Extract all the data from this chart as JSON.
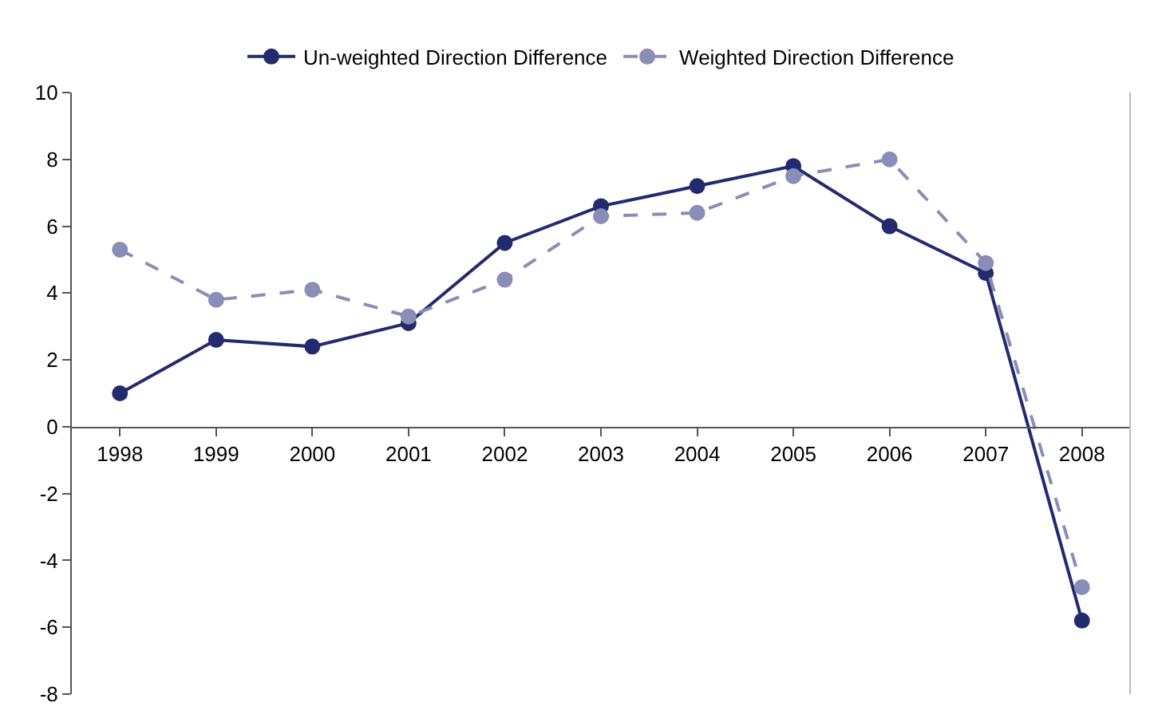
{
  "chart_data": {
    "type": "line",
    "categories": [
      "1998",
      "1999",
      "2000",
      "2001",
      "2002",
      "2003",
      "2004",
      "2005",
      "2006",
      "2007",
      "2008"
    ],
    "series": [
      {
        "name": "Un-weighted Direction Difference",
        "color": "#232a6e",
        "values": [
          1.0,
          2.6,
          2.4,
          3.1,
          5.5,
          6.6,
          7.2,
          7.8,
          6.0,
          4.6,
          -5.8
        ]
      },
      {
        "name": "Weighted Direction Difference",
        "color": "#8a8db5",
        "line_style": "dashed",
        "values": [
          5.3,
          3.8,
          4.1,
          3.3,
          4.4,
          6.3,
          6.4,
          7.5,
          8.0,
          4.9,
          -4.8
        ]
      }
    ],
    "ylim": [
      -8,
      10
    ],
    "yticks": [
      -8,
      -6,
      -4,
      -2,
      0,
      2,
      4,
      6,
      8,
      10
    ],
    "grid": false,
    "legend": "top",
    "marker": "circle",
    "line_style": "solid"
  }
}
